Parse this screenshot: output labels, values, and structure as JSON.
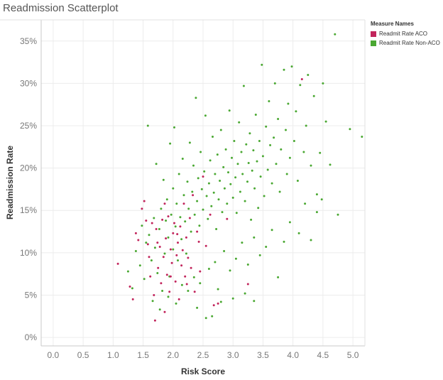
{
  "chart_data": {
    "type": "scatter",
    "title": "Readmission Scatterplot",
    "xlabel": "Risk Score",
    "ylabel": "Readmission Rate",
    "xlim": [
      -0.2,
      5.2
    ],
    "ylim": [
      -0.01,
      0.375
    ],
    "xticks": [
      "0.0",
      "0.5",
      "1.0",
      "1.5",
      "2.0",
      "2.5",
      "3.0",
      "3.5",
      "4.0",
      "4.5",
      "5.0"
    ],
    "yticks": [
      "0%",
      "5%",
      "10%",
      "15%",
      "20%",
      "25%",
      "30%",
      "35%"
    ],
    "legend": {
      "title": "Measure Names",
      "position": "top-right"
    },
    "series": [
      {
        "name": "Readmit Rate ACO",
        "color": "#c2255c",
        "points": [
          [
            1.08,
            0.087
          ],
          [
            1.28,
            0.06
          ],
          [
            1.33,
            0.045
          ],
          [
            1.38,
            0.123
          ],
          [
            1.42,
            0.115
          ],
          [
            1.48,
            0.152
          ],
          [
            1.52,
            0.161
          ],
          [
            1.55,
            0.138
          ],
          [
            1.58,
            0.11
          ],
          [
            1.6,
            0.095
          ],
          [
            1.62,
            0.072
          ],
          [
            1.65,
            0.135
          ],
          [
            1.68,
            0.05
          ],
          [
            1.7,
            0.02
          ],
          [
            1.72,
            0.128
          ],
          [
            1.75,
            0.082
          ],
          [
            1.78,
            0.107
          ],
          [
            1.8,
            0.064
          ],
          [
            1.82,
            0.139
          ],
          [
            1.84,
            0.095
          ],
          [
            1.86,
            0.03
          ],
          [
            1.88,
            0.117
          ],
          [
            1.9,
            0.074
          ],
          [
            1.92,
            0.143
          ],
          [
            1.94,
            0.054
          ],
          [
            1.96,
            0.104
          ],
          [
            1.98,
            0.088
          ],
          [
            2.0,
            0.123
          ],
          [
            2.02,
            0.135
          ],
          [
            2.04,
            0.066
          ],
          [
            2.06,
            0.097
          ],
          [
            2.08,
            0.112
          ],
          [
            2.1,
            0.045
          ],
          [
            2.12,
            0.131
          ],
          [
            2.14,
            0.085
          ],
          [
            2.16,
            0.103
          ],
          [
            2.18,
            0.158
          ],
          [
            2.2,
            0.072
          ],
          [
            2.22,
            0.118
          ],
          [
            2.25,
            0.094
          ],
          [
            2.28,
            0.141
          ],
          [
            2.3,
            0.082
          ],
          [
            2.33,
            0.168
          ],
          [
            2.36,
            0.054
          ],
          [
            2.4,
            0.125
          ],
          [
            2.45,
            0.078
          ],
          [
            2.5,
            0.19
          ],
          [
            2.55,
            0.108
          ],
          [
            2.62,
            0.145
          ],
          [
            2.68,
            0.038
          ],
          [
            2.75,
            0.04
          ],
          [
            2.9,
            0.14
          ],
          [
            3.25,
            0.063
          ],
          [
            1.74,
            0.112
          ],
          [
            1.86,
            0.158
          ],
          [
            1.96,
            0.072
          ],
          [
            2.07,
            0.122
          ],
          [
            2.23,
            0.063
          ],
          [
            2.43,
            0.113
          ],
          [
            4.15,
            0.305
          ]
        ]
      },
      {
        "name": "Readmit Rate Non-ACO",
        "color": "#4aa832",
        "points": [
          [
            1.25,
            0.078
          ],
          [
            1.32,
            0.058
          ],
          [
            1.38,
            0.102
          ],
          [
            1.45,
            0.085
          ],
          [
            1.48,
            0.132
          ],
          [
            1.52,
            0.069
          ],
          [
            1.55,
            0.112
          ],
          [
            1.58,
            0.25
          ],
          [
            1.6,
            0.121
          ],
          [
            1.64,
            0.091
          ],
          [
            1.68,
            0.141
          ],
          [
            1.7,
            0.106
          ],
          [
            1.72,
            0.205
          ],
          [
            1.74,
            0.076
          ],
          [
            1.77,
            0.128
          ],
          [
            1.8,
            0.152
          ],
          [
            1.82,
            0.055
          ],
          [
            1.84,
            0.186
          ],
          [
            1.86,
            0.099
          ],
          [
            1.88,
            0.138
          ],
          [
            1.9,
            0.163
          ],
          [
            1.92,
            0.118
          ],
          [
            1.94,
            0.072
          ],
          [
            1.95,
            0.229
          ],
          [
            1.97,
            0.145
          ],
          [
            2.0,
            0.176
          ],
          [
            2.0,
            0.104
          ],
          [
            2.02,
            0.248
          ],
          [
            2.04,
            0.131
          ],
          [
            2.06,
            0.158
          ],
          [
            2.08,
            0.091
          ],
          [
            2.1,
            0.193
          ],
          [
            2.12,
            0.142
          ],
          [
            2.14,
            0.116
          ],
          [
            2.16,
            0.211
          ],
          [
            2.18,
            0.168
          ],
          [
            2.2,
            0.137
          ],
          [
            2.22,
            0.099
          ],
          [
            2.24,
            0.184
          ],
          [
            2.26,
            0.152
          ],
          [
            2.28,
            0.23
          ],
          [
            2.3,
            0.125
          ],
          [
            2.32,
            0.172
          ],
          [
            2.34,
            0.203
          ],
          [
            2.36,
            0.145
          ],
          [
            2.38,
            0.283
          ],
          [
            2.4,
            0.161
          ],
          [
            2.42,
            0.188
          ],
          [
            2.44,
            0.132
          ],
          [
            2.46,
            0.219
          ],
          [
            2.48,
            0.175
          ],
          [
            2.5,
            0.151
          ],
          [
            2.52,
            0.196
          ],
          [
            2.54,
            0.262
          ],
          [
            2.56,
            0.167
          ],
          [
            2.58,
            0.14
          ],
          [
            2.6,
            0.182
          ],
          [
            2.62,
            0.209
          ],
          [
            2.64,
            0.155
          ],
          [
            2.66,
            0.237
          ],
          [
            2.68,
            0.171
          ],
          [
            2.7,
            0.193
          ],
          [
            2.72,
            0.128
          ],
          [
            2.74,
            0.216
          ],
          [
            2.76,
            0.163
          ],
          [
            2.78,
            0.185
          ],
          [
            2.8,
            0.245
          ],
          [
            2.82,
            0.148
          ],
          [
            2.84,
            0.201
          ],
          [
            2.86,
            0.176
          ],
          [
            2.88,
            0.222
          ],
          [
            2.9,
            0.158
          ],
          [
            2.92,
            0.195
          ],
          [
            2.94,
            0.268
          ],
          [
            2.96,
            0.181
          ],
          [
            2.98,
            0.212
          ],
          [
            3.0,
            0.165
          ],
          [
            3.02,
            0.232
          ],
          [
            3.04,
            0.189
          ],
          [
            3.06,
            0.147
          ],
          [
            3.08,
            0.205
          ],
          [
            3.1,
            0.254
          ],
          [
            3.12,
            0.172
          ],
          [
            3.14,
            0.219
          ],
          [
            3.16,
            0.193
          ],
          [
            3.18,
            0.297
          ],
          [
            3.2,
            0.161
          ],
          [
            3.22,
            0.228
          ],
          [
            3.24,
            0.184
          ],
          [
            3.26,
            0.206
          ],
          [
            3.28,
            0.241
          ],
          [
            3.3,
            0.139
          ],
          [
            3.32,
            0.197
          ],
          [
            3.34,
            0.221
          ],
          [
            3.36,
            0.176
          ],
          [
            3.38,
            0.263
          ],
          [
            3.4,
            0.208
          ],
          [
            3.42,
            0.153
          ],
          [
            3.44,
            0.232
          ],
          [
            3.46,
            0.19
          ],
          [
            3.48,
            0.322
          ],
          [
            3.5,
            0.214
          ],
          [
            3.52,
            0.167
          ],
          [
            3.55,
            0.249
          ],
          [
            3.58,
            0.198
          ],
          [
            3.6,
            0.279
          ],
          [
            3.62,
            0.227
          ],
          [
            3.65,
            0.182
          ],
          [
            3.68,
            0.236
          ],
          [
            3.7,
            0.3
          ],
          [
            3.72,
            0.205
          ],
          [
            3.75,
            0.258
          ],
          [
            3.78,
            0.172
          ],
          [
            3.8,
            0.222
          ],
          [
            3.85,
            0.316
          ],
          [
            3.88,
            0.245
          ],
          [
            3.9,
            0.193
          ],
          [
            3.92,
            0.276
          ],
          [
            3.95,
            0.212
          ],
          [
            3.98,
            0.32
          ],
          [
            4.02,
            0.232
          ],
          [
            4.05,
            0.267
          ],
          [
            4.08,
            0.185
          ],
          [
            4.12,
            0.298
          ],
          [
            4.18,
            0.219
          ],
          [
            4.22,
            0.25
          ],
          [
            4.25,
            0.31
          ],
          [
            4.3,
            0.203
          ],
          [
            4.35,
            0.285
          ],
          [
            4.4,
            0.169
          ],
          [
            4.45,
            0.218
          ],
          [
            4.5,
            0.3
          ],
          [
            4.55,
            0.255
          ],
          [
            4.62,
            0.204
          ],
          [
            4.7,
            0.358
          ],
          [
            4.75,
            0.145
          ],
          [
            4.95,
            0.246
          ],
          [
            5.15,
            0.237
          ],
          [
            1.66,
            0.043
          ],
          [
            1.78,
            0.033
          ],
          [
            1.92,
            0.048
          ],
          [
            2.05,
            0.04
          ],
          [
            2.15,
            0.062
          ],
          [
            2.25,
            0.055
          ],
          [
            2.35,
            0.071
          ],
          [
            2.45,
            0.064
          ],
          [
            2.55,
            0.023
          ],
          [
            2.6,
            0.081
          ],
          [
            2.7,
            0.089
          ],
          [
            2.75,
            0.057
          ],
          [
            2.85,
            0.102
          ],
          [
            2.95,
            0.079
          ],
          [
            3.05,
            0.093
          ],
          [
            3.15,
            0.112
          ],
          [
            3.25,
            0.086
          ],
          [
            3.35,
            0.118
          ],
          [
            3.45,
            0.097
          ],
          [
            3.55,
            0.107
          ],
          [
            3.65,
            0.127
          ],
          [
            3.75,
            0.071
          ],
          [
            3.85,
            0.113
          ],
          [
            3.95,
            0.136
          ],
          [
            4.1,
            0.123
          ],
          [
            4.2,
            0.158
          ],
          [
            4.3,
            0.115
          ],
          [
            4.4,
            0.148
          ],
          [
            4.48,
            0.163
          ],
          [
            3.35,
            0.043
          ],
          [
            3.2,
            0.052
          ],
          [
            3.0,
            0.046
          ],
          [
            2.8,
            0.042
          ],
          [
            2.65,
            0.025
          ],
          [
            2.4,
            0.035
          ]
        ]
      }
    ]
  }
}
